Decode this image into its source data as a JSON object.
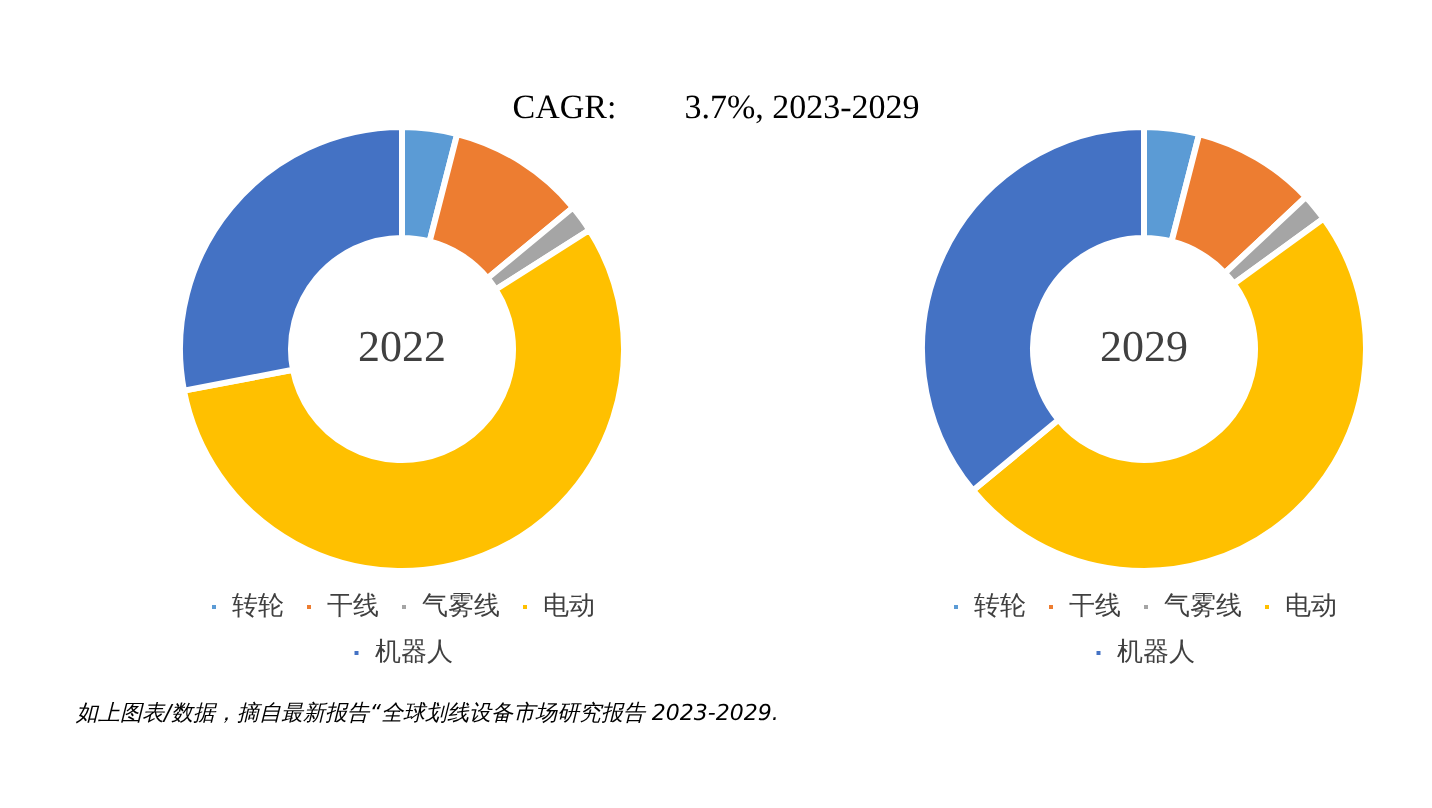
{
  "chart_data": [
    {
      "type": "donut",
      "title": "2022",
      "categories": [
        "转轮",
        "干线",
        "气雾线",
        "电动",
        "机器人"
      ],
      "values": [
        4,
        10,
        2,
        56,
        28
      ],
      "colors": [
        "#5b9bd5",
        "#ed7d31",
        "#a5a5a5",
        "#ffc000",
        "#4472c4"
      ],
      "legend": "bottom",
      "annotations": [
        "CAGR:        3.7%, 2023-2029",
        "如上图表/数据，摘自最新报告“全球划线设备市场研究报告 2023-2029."
      ]
    },
    {
      "type": "donut",
      "title": "2029",
      "categories": [
        "转轮",
        "干线",
        "气雾线",
        "电动",
        "机器人"
      ],
      "values": [
        4,
        9,
        2,
        49,
        36
      ],
      "colors": [
        "#5b9bd5",
        "#ed7d31",
        "#a5a5a5",
        "#ffc000",
        "#4472c4"
      ],
      "legend": "bottom"
    }
  ]
}
